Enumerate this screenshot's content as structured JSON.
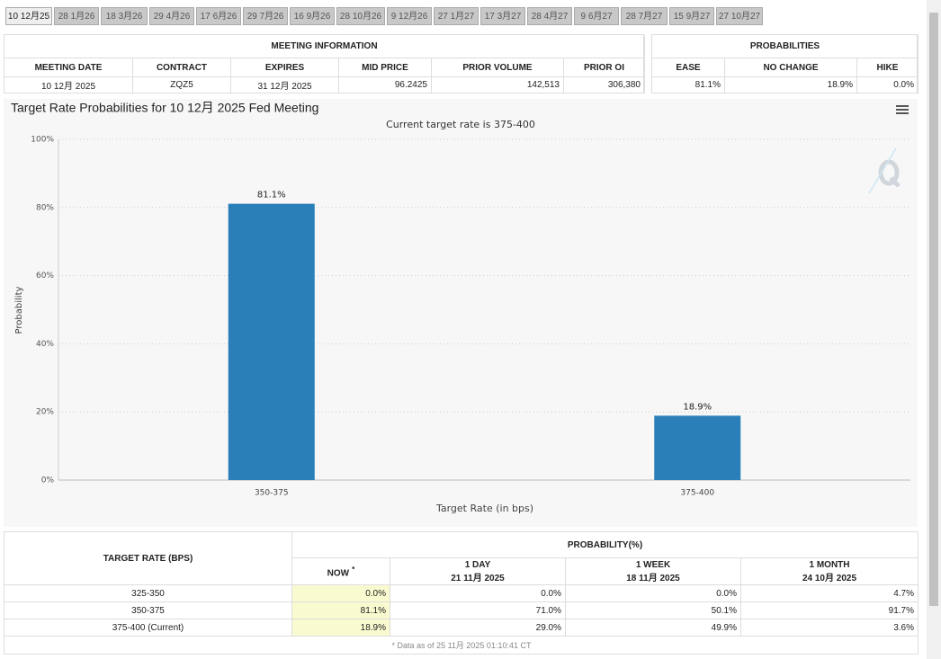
{
  "tabs": [
    "10 12月25",
    "28 1月26",
    "18 3月26",
    "29 4月26",
    "17 6月26",
    "29 7月26",
    "16 9月26",
    "28 10月26",
    "9 12月26",
    "27 1月27",
    "17 3月27",
    "28 4月27",
    "9 6月27",
    "28 7月27",
    "15 9月27",
    "27 10月27"
  ],
  "meeting_info": {
    "title": "MEETING INFORMATION",
    "headers": [
      "MEETING DATE",
      "CONTRACT",
      "EXPIRES",
      "MID PRICE",
      "PRIOR VOLUME",
      "PRIOR OI"
    ],
    "row": [
      "10 12月 2025",
      "ZQZ5",
      "31 12月 2025",
      "96.2425",
      "142,513",
      "306,380"
    ]
  },
  "probabilities": {
    "title": "PROBABILITIES",
    "headers": [
      "EASE",
      "NO CHANGE",
      "HIKE"
    ],
    "row": [
      "81.1%",
      "18.9%",
      "0.0%"
    ]
  },
  "chart_data": {
    "type": "bar",
    "title": "Target Rate Probabilities for 10 12月 2025 Fed Meeting",
    "subtitle": "Current target rate is 375-400",
    "x_label": "Target Rate (in bps)",
    "y_label": "Probability",
    "categories": [
      "350-375",
      "375-400"
    ],
    "values": [
      81.1,
      18.9
    ],
    "value_labels": [
      "81.1%",
      "18.9%"
    ],
    "color": "#2a7fb8",
    "ylim": [
      0,
      100
    ],
    "yticks": [
      {
        "value": 0,
        "label": "0%"
      },
      {
        "value": 20,
        "label": "20%"
      },
      {
        "value": 40,
        "label": "40%"
      },
      {
        "value": 60,
        "label": "60%"
      },
      {
        "value": 80,
        "label": "80%"
      },
      {
        "value": 100,
        "label": "100%"
      }
    ],
    "grid": true
  },
  "prob_table": {
    "first_header": "TARGET RATE (BPS)",
    "group_header": "PROBABILITY(%)",
    "columns": [
      {
        "label": "NOW",
        "note": "*"
      },
      {
        "label": "1 DAY",
        "date": "21 11月 2025"
      },
      {
        "label": "1 WEEK",
        "date": "18 11月 2025"
      },
      {
        "label": "1 MONTH",
        "date": "24 10月 2025"
      }
    ],
    "rows": [
      [
        "325-350",
        "0.0%",
        "0.0%",
        "0.0%",
        "4.7%"
      ],
      [
        "350-375",
        "81.1%",
        "71.0%",
        "50.1%",
        "91.7%"
      ],
      [
        "375-400 (Current)",
        "18.9%",
        "29.0%",
        "49.9%",
        "3.6%"
      ]
    ],
    "footnote": "* Data as of 25 11月 2025 01:10:41 CT"
  }
}
